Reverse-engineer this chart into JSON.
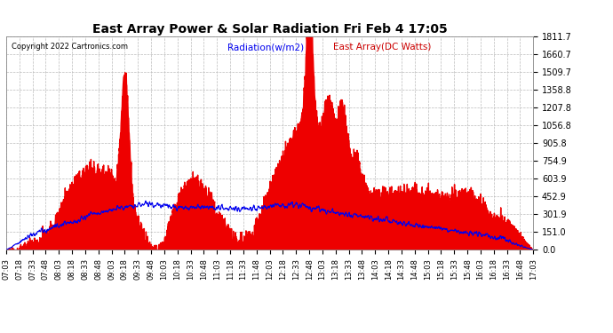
{
  "title": "East Array Power & Solar Radiation Fri Feb 4 17:05",
  "copyright": "Copyright 2022 Cartronics.com",
  "legend_radiation": "Radiation(w/m2)",
  "legend_east": "East Array(DC Watts)",
  "y_ticks": [
    0.0,
    151.0,
    301.9,
    452.9,
    603.9,
    754.9,
    905.8,
    1056.8,
    1207.8,
    1358.8,
    1509.7,
    1660.7,
    1811.7
  ],
  "y_max": 1811.7,
  "y_min": 0.0,
  "background_color": "#ffffff",
  "plot_bg_color": "#ffffff",
  "grid_color": "#bbbbbb",
  "fill_color": "#ee0000",
  "line_color": "#0000ee",
  "title_color": "#000000",
  "copyright_color": "#000000",
  "radiation_label_color": "#0000ee",
  "east_label_color": "#cc0000",
  "x_labels": [
    "07:03",
    "07:18",
    "07:33",
    "07:48",
    "08:03",
    "08:18",
    "08:33",
    "08:48",
    "09:03",
    "09:18",
    "09:33",
    "09:48",
    "10:03",
    "10:18",
    "10:33",
    "10:48",
    "11:03",
    "11:18",
    "11:33",
    "11:48",
    "12:03",
    "12:18",
    "12:33",
    "12:48",
    "13:03",
    "13:18",
    "13:33",
    "13:48",
    "14:03",
    "14:18",
    "14:33",
    "14:48",
    "15:03",
    "15:18",
    "15:33",
    "15:48",
    "16:03",
    "16:18",
    "16:33",
    "16:48",
    "17:03"
  ]
}
